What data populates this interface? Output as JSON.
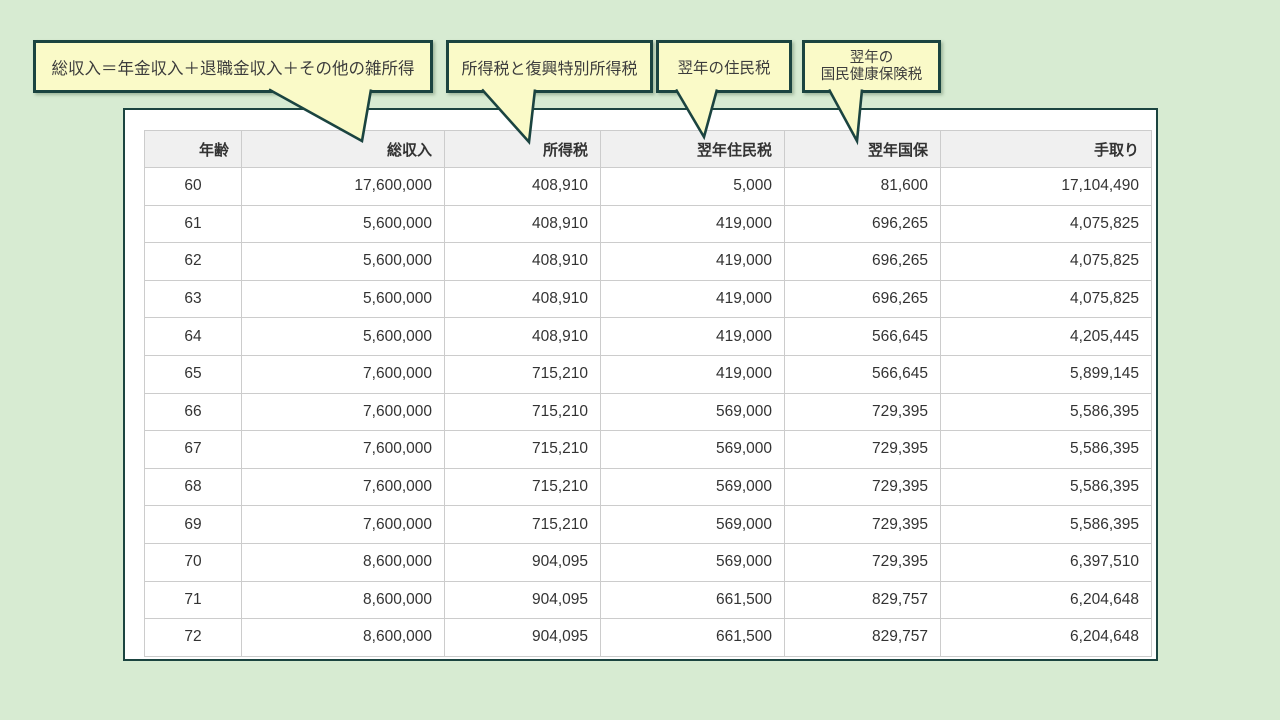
{
  "colors": {
    "page_background": "#d7ebd2",
    "panel_border": "#1b4440",
    "callout_fill": "#fafac8",
    "header_background": "#f0f0f0",
    "grid_line": "#cccccc",
    "text": "#333333"
  },
  "callouts": [
    {
      "text": "総収入＝年金収入＋退職金収入＋その他の雑所得"
    },
    {
      "text": "所得税と復興特別所得税"
    },
    {
      "text": "翌年の住民税"
    },
    {
      "line1": "翌年の",
      "line2": "国民健康保険税"
    }
  ],
  "table": {
    "columns": [
      "年齢",
      "総収入",
      "所得税",
      "翌年住民税",
      "翌年国保",
      "手取り"
    ],
    "rows": [
      [
        "60",
        "17,600,000",
        "408,910",
        "5,000",
        "81,600",
        "17,104,490"
      ],
      [
        "61",
        "5,600,000",
        "408,910",
        "419,000",
        "696,265",
        "4,075,825"
      ],
      [
        "62",
        "5,600,000",
        "408,910",
        "419,000",
        "696,265",
        "4,075,825"
      ],
      [
        "63",
        "5,600,000",
        "408,910",
        "419,000",
        "696,265",
        "4,075,825"
      ],
      [
        "64",
        "5,600,000",
        "408,910",
        "419,000",
        "566,645",
        "4,205,445"
      ],
      [
        "65",
        "7,600,000",
        "715,210",
        "419,000",
        "566,645",
        "5,899,145"
      ],
      [
        "66",
        "7,600,000",
        "715,210",
        "569,000",
        "729,395",
        "5,586,395"
      ],
      [
        "67",
        "7,600,000",
        "715,210",
        "569,000",
        "729,395",
        "5,586,395"
      ],
      [
        "68",
        "7,600,000",
        "715,210",
        "569,000",
        "729,395",
        "5,586,395"
      ],
      [
        "69",
        "7,600,000",
        "715,210",
        "569,000",
        "729,395",
        "5,586,395"
      ],
      [
        "70",
        "8,600,000",
        "904,095",
        "569,000",
        "729,395",
        "6,397,510"
      ],
      [
        "71",
        "8,600,000",
        "904,095",
        "661,500",
        "829,757",
        "6,204,648"
      ],
      [
        "72",
        "8,600,000",
        "904,095",
        "661,500",
        "829,757",
        "6,204,648"
      ]
    ]
  }
}
